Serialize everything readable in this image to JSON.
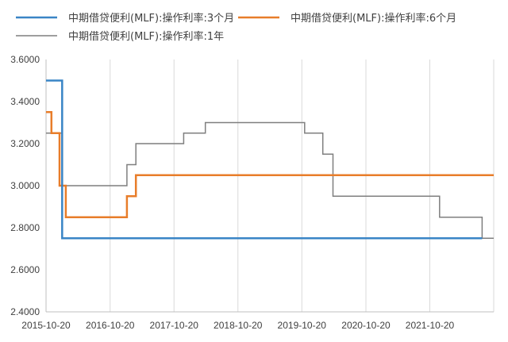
{
  "chart_data": {
    "type": "line",
    "step": true,
    "title": "",
    "xlabel": "",
    "ylabel": "",
    "ylim": [
      2.4,
      3.6
    ],
    "yticks": [
      "3.6000",
      "3.4000",
      "3.2000",
      "3.0000",
      "2.8000",
      "2.6000",
      "2.4000"
    ],
    "ytick_values": [
      3.6,
      3.4,
      3.2,
      3.0,
      2.8,
      2.6,
      2.4
    ],
    "xlim": [
      "2015-10-20",
      "2022-10-20"
    ],
    "xticks": [
      "2015-10-20",
      "2016-10-20",
      "2017-10-20",
      "2018-10-20",
      "2019-10-20",
      "2020-10-20",
      "2021-10-20"
    ],
    "grid": "vertical",
    "legend_position": "top",
    "series": [
      {
        "name": "中期借贷便利(MLF):操作利率:3个月",
        "color": "#3a85c6",
        "steps": [
          [
            "2015-10-20",
            3.5
          ],
          [
            "2016-01-20",
            2.75
          ],
          [
            "2022-08-15",
            2.75
          ]
        ]
      },
      {
        "name": "中期借贷便利(MLF):操作利率:6个月",
        "color": "#e87d2a",
        "steps": [
          [
            "2015-10-20",
            3.35
          ],
          [
            "2015-11-20",
            3.25
          ],
          [
            "2016-01-05",
            3.0
          ],
          [
            "2016-02-10",
            2.85
          ],
          [
            "2017-01-24",
            2.95
          ],
          [
            "2017-03-16",
            3.05
          ],
          [
            "2022-10-20",
            3.05
          ]
        ]
      },
      {
        "name": "中期借贷便利(MLF):操作利率:1年",
        "color": "#7f7f7f",
        "steps": [
          [
            "2015-10-20",
            3.25
          ],
          [
            "2016-01-20",
            3.0
          ],
          [
            "2017-01-24",
            3.1
          ],
          [
            "2017-03-16",
            3.2
          ],
          [
            "2017-12-14",
            3.25
          ],
          [
            "2018-04-17",
            3.3
          ],
          [
            "2019-11-05",
            3.25
          ],
          [
            "2020-02-17",
            3.15
          ],
          [
            "2020-04-15",
            2.95
          ],
          [
            "2021-12-15",
            2.85
          ],
          [
            "2022-08-15",
            2.75
          ],
          [
            "2022-10-20",
            2.75
          ]
        ]
      }
    ]
  }
}
